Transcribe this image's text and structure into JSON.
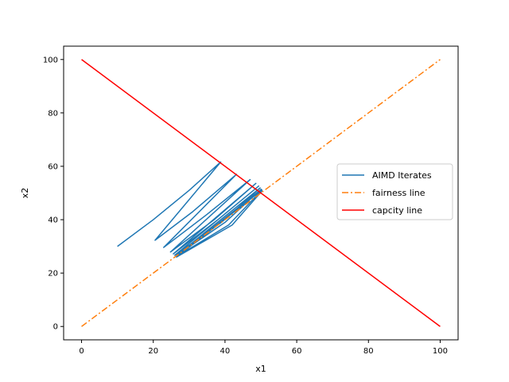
{
  "chart_data": {
    "type": "line",
    "title": "",
    "xlabel": "x1",
    "ylabel": "x2",
    "xlim": [
      -5,
      105
    ],
    "ylim": [
      -5,
      105
    ],
    "xticks": [
      0,
      20,
      40,
      60,
      80,
      100
    ],
    "yticks": [
      0,
      20,
      40,
      60,
      80,
      100
    ],
    "grid": false,
    "legend_position": "center-right",
    "series": [
      {
        "name": "AIMD Iterates",
        "color": "#1f77b4",
        "dash": "solid",
        "x": [
          10,
          20,
          30,
          38.8,
          20.5,
          31,
          43.2,
          22.9,
          35,
          47,
          24.8,
          37,
          48.6,
          25.6,
          38,
          49.4,
          26.0,
          39,
          49.8,
          26.3,
          40,
          50.1,
          26.4,
          41,
          50.3,
          26.5,
          42,
          50.4
        ],
        "y": [
          30,
          40,
          51,
          61.6,
          32.3,
          43,
          57.0,
          29.6,
          42,
          55,
          27.9,
          40,
          53.6,
          27.2,
          40,
          52.6,
          26.7,
          39,
          51.9,
          26.4,
          39,
          51.4,
          26.1,
          38,
          51.1,
          26.0,
          38,
          50.9
        ]
      },
      {
        "name": "fairness line",
        "color": "#ff7f0e",
        "dash": "dashdot",
        "x": [
          0,
          100
        ],
        "y": [
          0,
          100
        ]
      },
      {
        "name": "capcity line",
        "color": "#ff0000",
        "dash": "solid",
        "x": [
          0,
          100
        ],
        "y": [
          100,
          0
        ]
      }
    ]
  }
}
